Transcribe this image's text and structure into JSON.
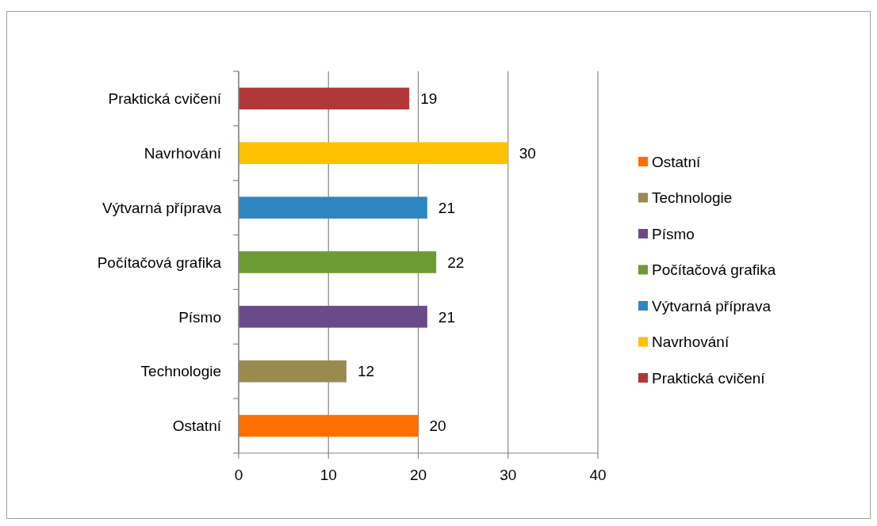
{
  "chart_data": {
    "type": "bar",
    "orientation": "horizontal",
    "stacked": true,
    "categories": [
      "Praktická cvičení",
      "Navrhování",
      "Výtvarná příprava",
      "Počítačová grafika",
      "Písmo",
      "Technologie",
      "Ostatní"
    ],
    "series": [
      {
        "name": "Ostatní",
        "color": "#ff6d00",
        "values": [
          null,
          null,
          null,
          null,
          null,
          null,
          20
        ]
      },
      {
        "name": "Technologie",
        "color": "#998a50",
        "values": [
          null,
          null,
          null,
          null,
          null,
          12,
          null
        ]
      },
      {
        "name": "Písmo",
        "color": "#6a4a8a",
        "values": [
          null,
          null,
          null,
          null,
          21,
          null,
          null
        ]
      },
      {
        "name": "Počítačová grafika",
        "color": "#6e9a34",
        "values": [
          null,
          null,
          null,
          22,
          null,
          null,
          null
        ]
      },
      {
        "name": "Výtvarná příprava",
        "color": "#2e86c1",
        "values": [
          null,
          null,
          21,
          null,
          null,
          null,
          null
        ]
      },
      {
        "name": "Navrhování",
        "color": "#ffc000",
        "values": [
          null,
          30,
          null,
          null,
          null,
          null,
          null
        ]
      },
      {
        "name": "Praktická cvičení",
        "color": "#b03838",
        "values": [
          19,
          null,
          null,
          null,
          null,
          null,
          null
        ]
      }
    ],
    "xlim": [
      0,
      40
    ],
    "xticks": [
      0,
      10,
      20,
      30,
      40
    ],
    "grid": "x",
    "data_labels": true,
    "legend": "right"
  }
}
